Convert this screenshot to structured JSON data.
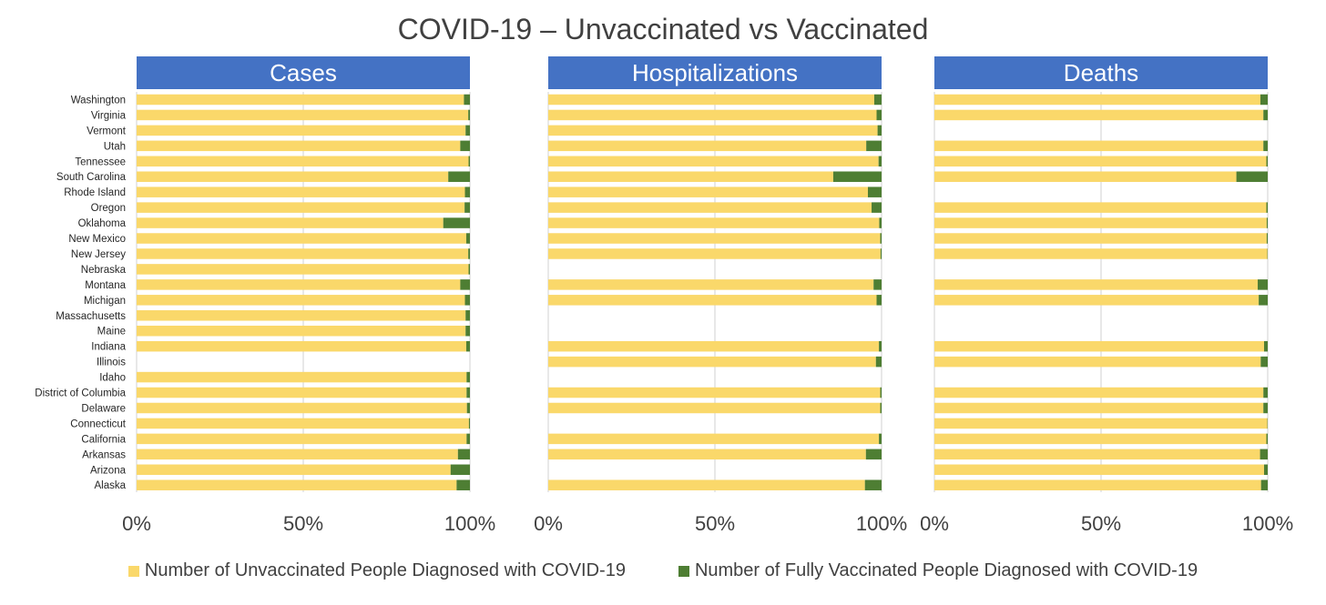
{
  "chart_data": {
    "type": "bar",
    "title": "COVID-19 – Unvaccinated vs Vaccinated",
    "categories": [
      "Washington",
      "Virginia",
      "Vermont",
      "Utah",
      "Tennessee",
      "South Carolina",
      "Rhode Island",
      "Oregon",
      "Oklahoma",
      "New Mexico",
      "New Jersey",
      "Nebraska",
      "Montana",
      "Michigan",
      "Massachusetts",
      "Maine",
      "Indiana",
      "Illinois",
      "Idaho",
      "District of Columbia",
      "Delaware",
      "Connecticut",
      "California",
      "Arkansas",
      "Arizona",
      "Alaska"
    ],
    "x_ticks": [
      "0%",
      "50%",
      "100%"
    ],
    "xlim": [
      0,
      100
    ],
    "stacked": true,
    "colors": {
      "unvaccinated": "#FAD86A",
      "vaccinated": "#4E7E33",
      "panel_header": "#4472C4",
      "grid": "#d0d0d0"
    },
    "legend": [
      {
        "name": "Number of Unvaccinated People Diagnosed with COVID-19",
        "color": "#FAD86A"
      },
      {
        "name": "Number of Fully Vaccinated People Diagnosed with COVID-19",
        "color": "#4E7E33"
      }
    ],
    "legend_position": "bottom",
    "panels": [
      {
        "title": "Cases",
        "series": [
          {
            "name": "Number of Unvaccinated People Diagnosed with COVID-19",
            "values": [
              98.2,
              99.5,
              98.7,
              97.1,
              99.6,
              93.5,
              98.5,
              98.4,
              92.0,
              98.9,
              99.5,
              99.6,
              97.1,
              98.5,
              98.7,
              98.7,
              98.9,
              null,
              99.0,
              99.0,
              99.1,
              99.7,
              99.0,
              96.4,
              94.2,
              96.0
            ]
          },
          {
            "name": "Number of Fully Vaccinated People Diagnosed with COVID-19",
            "values": [
              1.8,
              0.5,
              1.3,
              2.9,
              0.4,
              6.5,
              1.5,
              1.6,
              8.0,
              1.1,
              0.5,
              0.4,
              2.9,
              1.5,
              1.3,
              1.3,
              1.1,
              null,
              1.0,
              1.0,
              0.9,
              0.3,
              1.0,
              3.6,
              5.8,
              4.0
            ]
          }
        ]
      },
      {
        "title": "Hospitalizations",
        "series": [
          {
            "name": "Number of Unvaccinated People Diagnosed with COVID-19",
            "values": [
              97.8,
              98.5,
              98.8,
              95.4,
              99.1,
              85.5,
              95.9,
              97.0,
              99.3,
              99.6,
              99.7,
              null,
              97.6,
              98.5,
              null,
              null,
              99.2,
              98.3,
              null,
              99.6,
              99.6,
              null,
              99.2,
              95.3,
              null,
              95.0
            ]
          },
          {
            "name": "Number of Fully Vaccinated People Diagnosed with COVID-19",
            "values": [
              2.2,
              1.5,
              1.2,
              4.6,
              0.9,
              14.5,
              4.1,
              3.0,
              0.7,
              0.4,
              0.3,
              null,
              2.4,
              1.5,
              null,
              null,
              0.8,
              1.7,
              null,
              0.4,
              0.4,
              null,
              0.8,
              4.7,
              null,
              5.0
            ]
          }
        ]
      },
      {
        "title": "Deaths",
        "series": [
          {
            "name": "Number of Unvaccinated People Diagnosed with COVID-19",
            "values": [
              97.8,
              98.7,
              null,
              98.7,
              99.6,
              90.6,
              null,
              99.6,
              99.7,
              99.7,
              99.9,
              null,
              97.0,
              97.3,
              null,
              null,
              98.9,
              97.9,
              null,
              98.7,
              98.7,
              99.9,
              99.6,
              97.7,
              98.9,
              98.0
            ]
          },
          {
            "name": "Number of Fully Vaccinated People Diagnosed with COVID-19",
            "values": [
              2.2,
              1.3,
              null,
              1.3,
              0.4,
              9.4,
              null,
              0.4,
              0.3,
              0.3,
              0.1,
              null,
              3.0,
              2.7,
              null,
              null,
              1.1,
              2.1,
              null,
              1.3,
              1.3,
              0.1,
              0.4,
              2.3,
              1.1,
              2.0
            ]
          }
        ]
      }
    ]
  }
}
